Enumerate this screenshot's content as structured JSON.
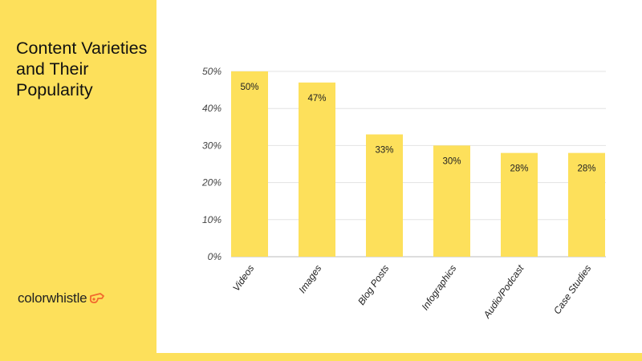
{
  "slide": {
    "title": "Content Varieties and Their Popularity",
    "logo_text": "colorwhistle"
  },
  "colors": {
    "accent": "#fde05b",
    "bar": "#fde05b",
    "grid": "#e3e3e3"
  },
  "icons": {
    "logo": "whistle-icon"
  },
  "chart_data": {
    "type": "bar",
    "title": "Content Varieties and Their Popularity",
    "xlabel": "",
    "ylabel": "",
    "categories": [
      "Videos",
      "Images",
      "Blog Posts",
      "Infographics",
      "Audio/Podcast",
      "Case Studies"
    ],
    "values": [
      50,
      47,
      33,
      30,
      28,
      28
    ],
    "value_labels": [
      "50%",
      "47%",
      "33%",
      "30%",
      "28%",
      "28%"
    ],
    "yticks": [
      0,
      10,
      20,
      30,
      40,
      50
    ],
    "ytick_labels": [
      "0%",
      "10%",
      "20%",
      "30%",
      "40%",
      "50%"
    ],
    "ylim": [
      0,
      50
    ],
    "grid": true,
    "legend": "none"
  }
}
